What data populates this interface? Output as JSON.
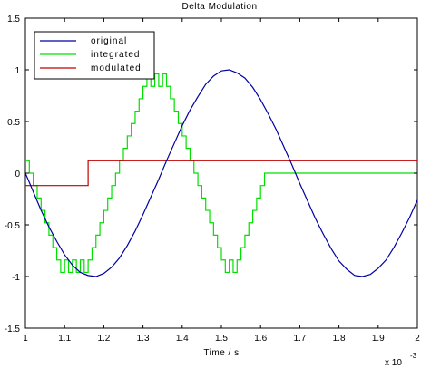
{
  "chart_data": {
    "type": "line",
    "title": "Delta Modulation",
    "xlabel": "Time / s",
    "ylabel": "",
    "x_multiplier": "x 10",
    "x_multiplier_exp": "-3",
    "xlim": [
      1.0,
      2.0
    ],
    "ylim": [
      -1.5,
      1.5
    ],
    "x_ticks": [
      1.0,
      1.1,
      1.2,
      1.3,
      1.4,
      1.5,
      1.6,
      1.7,
      1.8,
      1.9,
      2.0
    ],
    "x_tick_labels": [
      "1",
      "1.1",
      "1.2",
      "1.3",
      "1.4",
      "1.5",
      "1.6",
      "1.7",
      "1.8",
      "1.9",
      "2"
    ],
    "y_ticks": [
      -1.5,
      -1.0,
      -0.5,
      0.0,
      0.5,
      1.0,
      1.5
    ],
    "y_tick_labels": [
      "-1.5",
      "-1",
      "-0.5",
      "0",
      "0.5",
      "1",
      "1.5"
    ],
    "grid": false,
    "legend_position": "top-left",
    "series": [
      {
        "name": "original",
        "color": "#0000a0",
        "kind": "line",
        "x": [
          1.0,
          1.02,
          1.04,
          1.06,
          1.08,
          1.1,
          1.12,
          1.14,
          1.16,
          1.18,
          1.2,
          1.22,
          1.24,
          1.26,
          1.28,
          1.3,
          1.32,
          1.34,
          1.36,
          1.38,
          1.4,
          1.42,
          1.44,
          1.46,
          1.48,
          1.5,
          1.52,
          1.54,
          1.56,
          1.58,
          1.6,
          1.62,
          1.64,
          1.66,
          1.68,
          1.7,
          1.72,
          1.74,
          1.76,
          1.78,
          1.8,
          1.82,
          1.84,
          1.86,
          1.88,
          1.9,
          1.92,
          1.94,
          1.96,
          1.98,
          2.0
        ],
        "y": [
          0.0,
          -0.18,
          -0.36,
          -0.52,
          -0.66,
          -0.79,
          -0.89,
          -0.96,
          -0.99,
          -1.0,
          -0.97,
          -0.91,
          -0.82,
          -0.7,
          -0.56,
          -0.4,
          -0.23,
          -0.06,
          0.12,
          0.29,
          0.46,
          0.61,
          0.74,
          0.86,
          0.94,
          0.99,
          1.0,
          0.97,
          0.92,
          0.83,
          0.71,
          0.57,
          0.42,
          0.25,
          0.08,
          -0.1,
          -0.27,
          -0.44,
          -0.59,
          -0.73,
          -0.85,
          -0.93,
          -0.99,
          -1.0,
          -0.98,
          -0.92,
          -0.84,
          -0.72,
          -0.58,
          -0.43,
          -0.26
        ]
      },
      {
        "name": "integrated",
        "color": "#00e000",
        "kind": "step",
        "x": [
          1.0,
          1.01,
          1.02,
          1.03,
          1.04,
          1.05,
          1.06,
          1.07,
          1.08,
          1.09,
          1.1,
          1.11,
          1.12,
          1.13,
          1.14,
          1.15,
          1.16,
          1.17,
          1.18,
          1.19,
          1.2,
          1.21,
          1.22,
          1.23,
          1.24,
          1.25,
          1.26,
          1.27,
          1.28,
          1.29,
          1.3,
          1.31,
          1.32,
          1.33,
          1.34,
          1.35,
          1.36,
          1.37,
          1.38,
          1.39,
          1.4,
          1.41,
          1.42,
          1.43,
          1.44,
          1.45,
          1.46,
          1.47,
          1.48,
          1.49,
          1.5,
          1.51,
          1.52,
          1.53,
          1.54,
          1.55,
          1.56,
          1.57,
          1.58,
          1.59,
          1.6,
          1.61,
          1.62,
          1.63,
          1.64,
          1.65,
          1.66,
          1.67,
          1.68,
          1.69,
          1.7,
          1.71,
          1.72,
          1.73,
          1.74,
          1.75,
          1.76,
          1.77,
          1.78,
          1.79,
          1.8,
          1.81,
          1.82,
          1.83,
          1.84,
          1.85,
          1.86,
          1.87,
          1.88,
          1.89,
          1.9,
          1.91,
          1.92,
          1.93,
          1.94,
          1.95,
          1.96,
          1.97,
          1.98,
          1.99,
          2.0
        ],
        "y": [
          0.12,
          0.0,
          -0.12,
          -0.24,
          -0.36,
          -0.48,
          -0.6,
          -0.72,
          -0.84,
          -0.96,
          -0.84,
          -0.96,
          -0.84,
          -0.96,
          -0.84,
          -0.96,
          -0.84,
          -0.72,
          -0.6,
          -0.48,
          -0.36,
          -0.24,
          -0.12,
          0.0,
          0.12,
          0.24,
          0.36,
          0.48,
          0.6,
          0.72,
          0.84,
          0.96,
          0.84,
          0.96,
          0.84,
          0.96,
          0.84,
          0.72,
          0.6,
          0.48,
          0.36,
          0.24,
          0.12,
          0.0,
          -0.12,
          -0.24,
          -0.36,
          -0.48,
          -0.6,
          -0.72,
          -0.84,
          -0.96,
          -0.84,
          -0.96,
          -0.84,
          -0.72,
          -0.6,
          -0.48,
          -0.36,
          -0.24,
          -0.12,
          0.0,
          0.0,
          0.0,
          0.0,
          0.0,
          0.0,
          0.0,
          0.0,
          0.0,
          0.0,
          0.0,
          0.0,
          0.0,
          0.0,
          0.0,
          0.0,
          0.0,
          0.0,
          0.0,
          0.0,
          0.0,
          0.0,
          0.0,
          0.0,
          0.0,
          0.0,
          0.0,
          0.0,
          0.0,
          0.0,
          0.0,
          0.0,
          0.0,
          0.0,
          0.0,
          0.0,
          0.0,
          0.0,
          0.0,
          0.0
        ]
      },
      {
        "name": "modulated",
        "color": "#c00000",
        "kind": "step",
        "x": [
          1.0,
          1.1,
          1.12,
          1.14,
          1.16,
          1.18,
          1.2,
          1.22,
          1.24,
          1.26,
          1.28,
          1.3,
          1.32,
          1.34,
          1.36,
          1.38,
          1.4,
          1.42,
          1.44,
          1.46,
          1.48,
          1.5,
          1.52,
          1.54,
          1.56,
          1.58,
          1.6,
          1.62,
          1.64,
          1.66,
          1.68,
          1.7,
          1.72,
          1.74,
          1.76,
          1.78,
          1.8,
          1.82,
          1.84,
          1.86,
          1.88,
          1.9,
          1.92,
          1.94,
          1.96,
          1.98,
          2.0
        ],
        "y": [
          -0.12,
          -0.12,
          -0.12,
          -0.12,
          0.12,
          0.12,
          0.12,
          0.12,
          0.12,
          0.12,
          0.12,
          0.12,
          0.12,
          0.12,
          0.12,
          0.12,
          0.12,
          0.12,
          0.12,
          0.12,
          0.12,
          0.12,
          0.12,
          0.12,
          0.12,
          0.12,
          0.12,
          0.12,
          0.12,
          0.12,
          0.12,
          0.12,
          0.12,
          0.12,
          0.12,
          0.12,
          0.12,
          0.12,
          0.12,
          0.12,
          0.12,
          0.12,
          0.12,
          0.12,
          0.12,
          0.12,
          0.12
        ]
      }
    ]
  }
}
